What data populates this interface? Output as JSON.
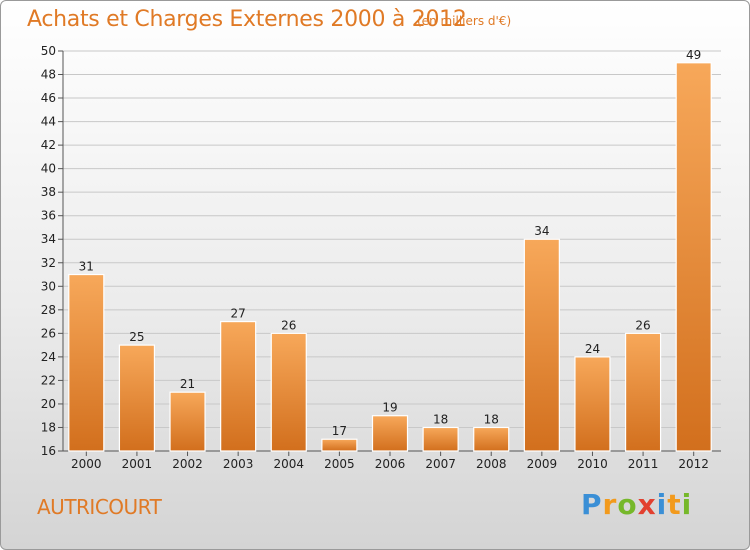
{
  "header": {
    "title": "Achats et Charges Externes 2000 à 2012",
    "subtitle": "(en milliers d'€)"
  },
  "footer": {
    "commune": "AUTRICOURT",
    "logo_letters": [
      "P",
      "r",
      "o",
      "x",
      "i",
      "t",
      "i"
    ]
  },
  "colors": {
    "accent": "#e07a26",
    "bar_top": "#f7a85a",
    "bar_bottom": "#d26f1d"
  },
  "chart_data": {
    "type": "bar",
    "title": "Achats et Charges Externes 2000 à 2012",
    "subtitle": "(en milliers d'€)",
    "categories": [
      "2000",
      "2001",
      "2002",
      "2003",
      "2004",
      "2005",
      "2006",
      "2007",
      "2008",
      "2009",
      "2010",
      "2011",
      "2012"
    ],
    "values": [
      31,
      25,
      21,
      27,
      26,
      17,
      19,
      18,
      18,
      34,
      24,
      26,
      49
    ],
    "ylim": [
      16,
      50
    ],
    "yticks": [
      16,
      18,
      20,
      22,
      24,
      26,
      28,
      30,
      32,
      34,
      36,
      38,
      40,
      42,
      44,
      46,
      48,
      50
    ],
    "grid": true,
    "legend": "none"
  }
}
